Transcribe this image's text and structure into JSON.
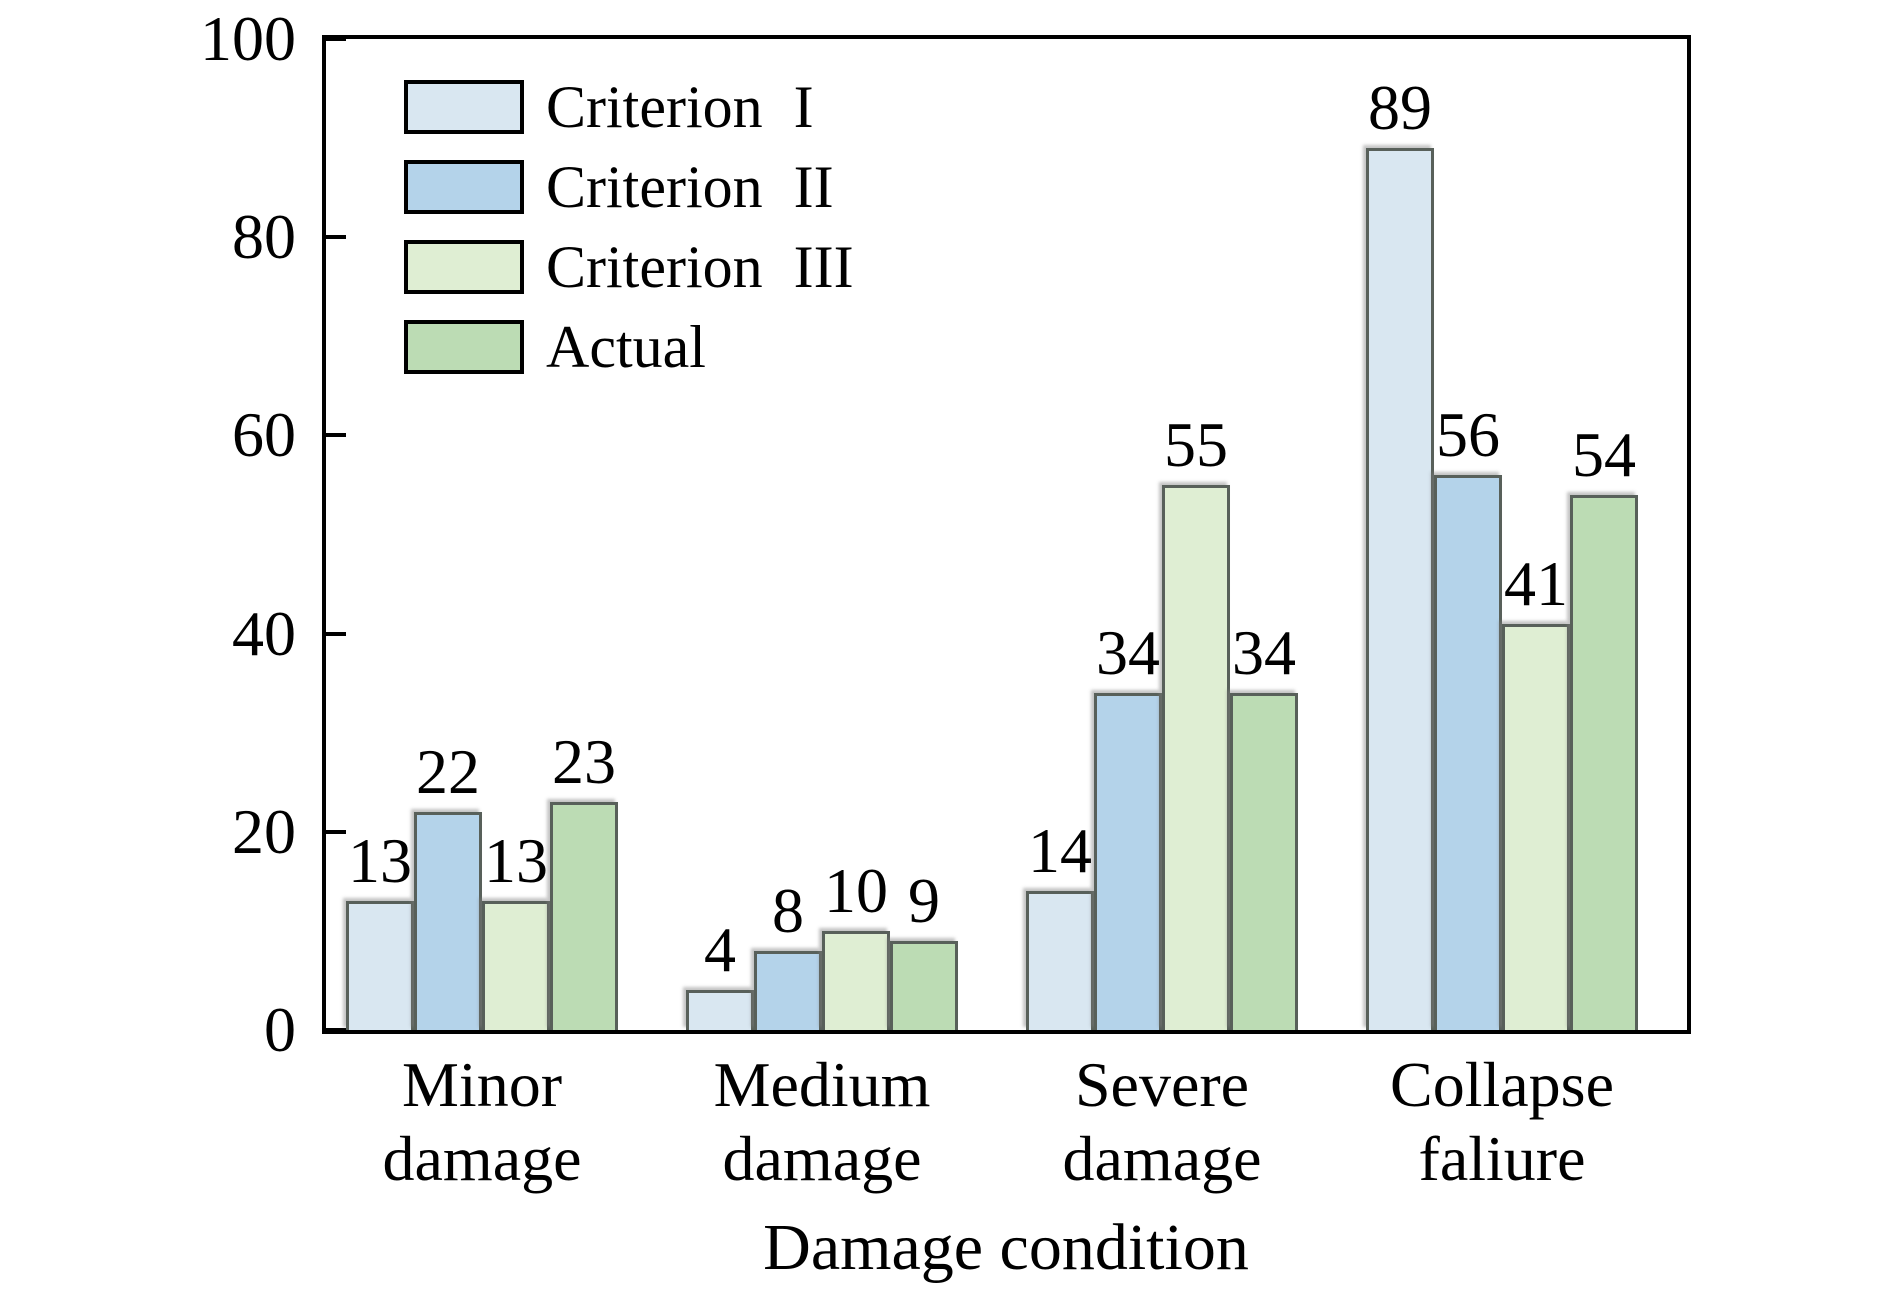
{
  "chart_data": {
    "type": "bar",
    "title": "",
    "xlabel": "Damage condition",
    "ylabel": "",
    "ylim": [
      0,
      100
    ],
    "yticks": [
      0,
      20,
      40,
      60,
      80,
      100
    ],
    "grid": false,
    "legend_position": "upper-left-inside",
    "categories": [
      "Minor damage",
      "Medium damage",
      "Severe damage",
      "Collapse faliure"
    ],
    "series": [
      {
        "name": "Criterion I",
        "color": "#d9e7f1",
        "values": [
          13,
          4,
          14,
          89
        ]
      },
      {
        "name": "Criterion II",
        "color": "#b4d3ea",
        "values": [
          22,
          8,
          34,
          56
        ]
      },
      {
        "name": "Criterion III",
        "color": "#dfeed3",
        "values": [
          13,
          10,
          55,
          41
        ]
      },
      {
        "name": "Actual",
        "color": "#bcdcb4",
        "values": [
          23,
          9,
          34,
          54
        ]
      }
    ]
  },
  "colors": {
    "axis": "#000000",
    "bar_border": "#58605a",
    "text": "#000000",
    "background": "#ffffff"
  }
}
